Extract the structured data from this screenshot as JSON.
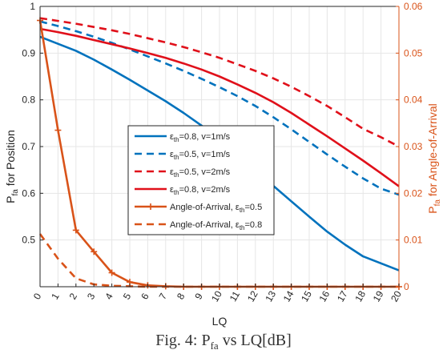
{
  "caption": {
    "fig_label": "Fig. 4:",
    "p": "P",
    "p_sub": "fa",
    "rest": " vs LQ[dB]"
  },
  "chart_data": {
    "type": "line",
    "xlabel": "LQ",
    "x": [
      0,
      1,
      2,
      3,
      4,
      5,
      6,
      7,
      8,
      9,
      10,
      11,
      12,
      13,
      14,
      15,
      16,
      17,
      18,
      19,
      20
    ],
    "xlim": [
      0,
      20
    ],
    "ylabel_left": {
      "p": "P",
      "sub": "fa",
      "rest": " for Position"
    },
    "ylabel_right": {
      "p": "P",
      "sub": "fa",
      "rest": " for Angle-of-Arrival"
    },
    "ylim_left": [
      0.4,
      1
    ],
    "ylim_right": [
      0,
      0.06
    ],
    "yticks_left": [
      "0.5",
      "0.6",
      "0.7",
      "0.8",
      "0.9",
      "1"
    ],
    "yticks_right": [
      "0",
      "0.01",
      "0.02",
      "0.03",
      "0.04",
      "0.05",
      "0.06"
    ],
    "grid": true,
    "legend_position": "center-left",
    "series": [
      {
        "label": "ε_th=0.8, v=1m/s",
        "eps": "0.8",
        "text": ", v=1m/s",
        "axis": "left",
        "color": "#0072BD",
        "dash": "solid",
        "marker": "none",
        "values": [
          0.935,
          0.92,
          0.905,
          0.886,
          0.865,
          0.843,
          0.82,
          0.797,
          0.772,
          0.745,
          0.716,
          0.684,
          0.65,
          0.616,
          0.583,
          0.55,
          0.518,
          0.49,
          0.465,
          0.45,
          0.435
        ]
      },
      {
        "label": "ε_th=0.5, v=1m/s",
        "eps": "0.5",
        "text": ", v=1m/s",
        "axis": "left",
        "color": "#0072BD",
        "dash": "dashed",
        "marker": "none",
        "values": [
          0.968,
          0.958,
          0.947,
          0.935,
          0.922,
          0.908,
          0.893,
          0.878,
          0.862,
          0.845,
          0.827,
          0.808,
          0.787,
          0.763,
          0.737,
          0.71,
          0.683,
          0.657,
          0.632,
          0.61,
          0.597
        ]
      },
      {
        "label": "ε_th=0.5, v=2m/s",
        "eps": "0.5",
        "text": ", v=2m/s",
        "axis": "left",
        "color": "#E0101A",
        "dash": "dashed",
        "marker": "none",
        "values": [
          0.975,
          0.969,
          0.963,
          0.956,
          0.949,
          0.941,
          0.932,
          0.923,
          0.913,
          0.902,
          0.89,
          0.876,
          0.862,
          0.846,
          0.828,
          0.808,
          0.787,
          0.763,
          0.738,
          0.72,
          0.7
        ]
      },
      {
        "label": "ε_th=0.8, v=2m/s",
        "eps": "0.8",
        "text": ", v=2m/s",
        "axis": "left",
        "color": "#E0101A",
        "dash": "solid",
        "marker": "none",
        "values": [
          0.952,
          0.945,
          0.937,
          0.928,
          0.919,
          0.91,
          0.9,
          0.89,
          0.878,
          0.865,
          0.85,
          0.833,
          0.815,
          0.795,
          0.772,
          0.747,
          0.722,
          0.696,
          0.67,
          0.643,
          0.615
        ]
      },
      {
        "label": "Angle-of-Arrival, ε_th=0.5",
        "text_before": "Angle-of-Arrival, ",
        "eps": "0.5",
        "axis": "right",
        "color": "#D95319",
        "dash": "solid",
        "marker": "plus",
        "values": [
          0.057,
          0.0335,
          0.0121,
          0.0075,
          0.003,
          0.001,
          0.0003,
          0.0001,
          0,
          0,
          0,
          0,
          0,
          0,
          0,
          0,
          0,
          0,
          0,
          0,
          0
        ]
      },
      {
        "label": "Angle-of-Arrival, ε_th=0.8",
        "text_before": "Angle-of-Arrival, ",
        "eps": "0.8",
        "axis": "right",
        "color": "#D95319",
        "dash": "dashed",
        "marker": "none",
        "values": [
          0.0113,
          0.006,
          0.0018,
          0.0005,
          0.0002,
          0.0001,
          0,
          0,
          0,
          0,
          0,
          0,
          0,
          0,
          0,
          0,
          0,
          0,
          0,
          0,
          0
        ]
      }
    ]
  }
}
